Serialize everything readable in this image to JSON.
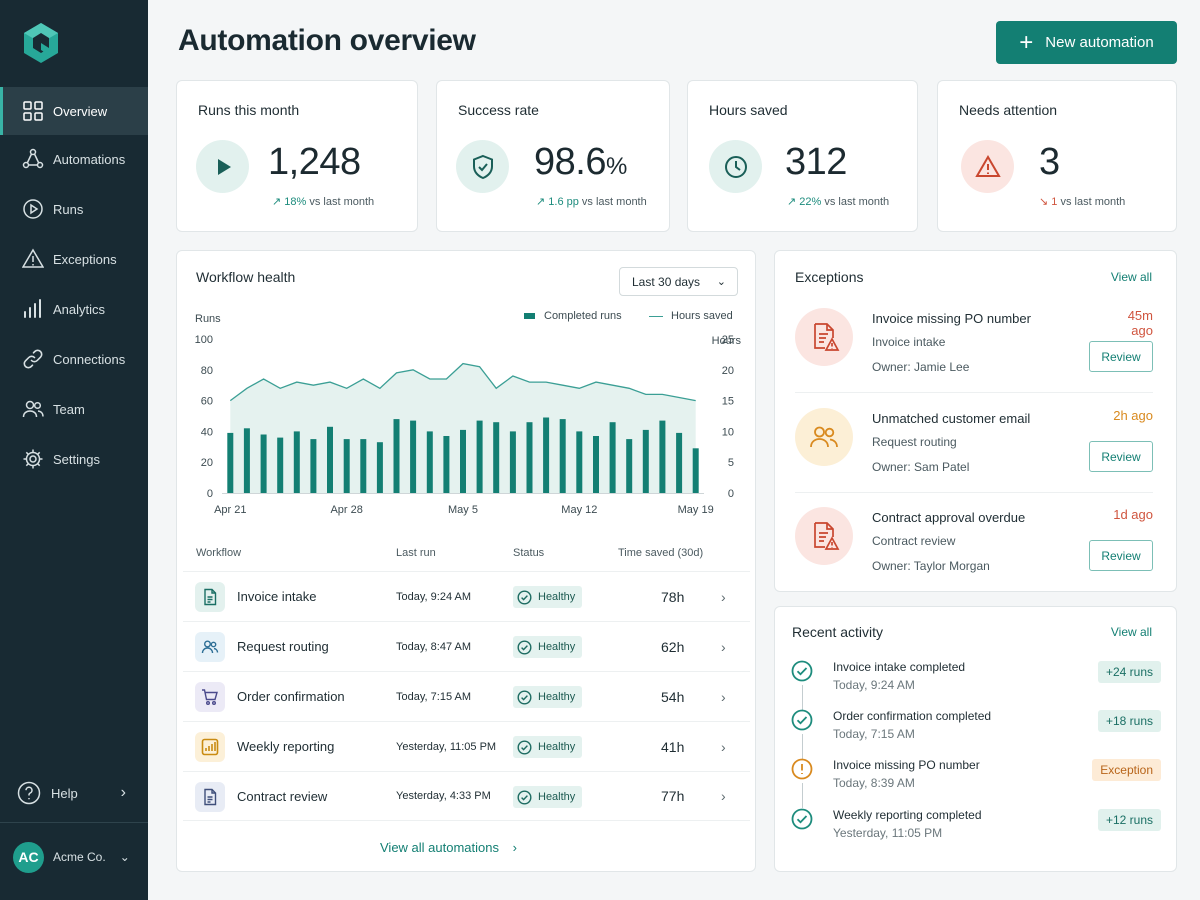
{
  "sidebar": {
    "items": [
      {
        "label": "Overview",
        "icon": "grid-icon"
      },
      {
        "label": "Automations",
        "icon": "nodes-icon"
      },
      {
        "label": "Runs",
        "icon": "play-circle-icon"
      },
      {
        "label": "Exceptions",
        "icon": "warning-icon"
      },
      {
        "label": "Analytics",
        "icon": "bar-chart-icon"
      },
      {
        "label": "Connections",
        "icon": "link-icon"
      },
      {
        "label": "Team",
        "icon": "team-icon"
      },
      {
        "label": "Settings",
        "icon": "gear-icon"
      }
    ],
    "active": "Overview",
    "help_label": "Help",
    "account": {
      "initials": "AC",
      "name": "Acme Co."
    }
  },
  "header": {
    "title": "Automation overview",
    "new_button": "New automation"
  },
  "kpis": [
    {
      "title": "Runs this month",
      "value": "1,248",
      "unit": "",
      "delta": "18%",
      "delta_suffix": " vs last month",
      "direction": "up"
    },
    {
      "title": "Success rate",
      "value": "98.6",
      "unit": "%",
      "delta": "1.6 pp",
      "delta_suffix": " vs last month",
      "direction": "up"
    },
    {
      "title": "Hours saved",
      "value": "312",
      "unit": "",
      "delta": "22%",
      "delta_suffix": " vs last month",
      "direction": "up"
    },
    {
      "title": "Needs attention",
      "value": "3",
      "unit": "",
      "delta": "1",
      "delta_suffix": " vs last month",
      "direction": "down"
    }
  ],
  "workflow_health": {
    "title": "Workflow health",
    "range": "Last 30 days",
    "table_headers": [
      "Workflow",
      "Last run",
      "Status",
      "Time saved (30d)"
    ],
    "rows": [
      {
        "name": "Invoice intake",
        "last_run": "Today, 9:24 AM",
        "status": "Healthy",
        "time_saved": "78h",
        "icon": "document-icon"
      },
      {
        "name": "Request routing",
        "last_run": "Today, 8:47 AM",
        "status": "Healthy",
        "time_saved": "62h",
        "icon": "users-icon"
      },
      {
        "name": "Order confirmation",
        "last_run": "Today, 7:15 AM",
        "status": "Healthy",
        "time_saved": "54h",
        "icon": "cart-icon"
      },
      {
        "name": "Weekly reporting",
        "last_run": "Yesterday, 11:05 PM",
        "status": "Healthy",
        "time_saved": "41h",
        "icon": "report-chart-icon"
      },
      {
        "name": "Contract review",
        "last_run": "Yesterday, 4:33 PM",
        "status": "Healthy",
        "time_saved": "77h",
        "icon": "contract-icon"
      }
    ],
    "view_all": "View all automations"
  },
  "chart_data": {
    "type": "bar",
    "title": "",
    "xlabel": "",
    "ylabel": "Runs",
    "y2label": "Hours",
    "ylim": [
      0,
      100
    ],
    "y2lim": [
      0,
      25
    ],
    "yticks": [
      "0",
      "20",
      "40",
      "60",
      "80",
      "100"
    ],
    "y2ticks": [
      "0",
      "5",
      "10",
      "15",
      "20",
      "25"
    ],
    "xticks": [
      "Apr 21",
      "Apr 28",
      "May 5",
      "May 12",
      "May 19"
    ],
    "x": [
      "Apr 21",
      "Apr 22",
      "Apr 23",
      "Apr 24",
      "Apr 25",
      "Apr 26",
      "Apr 27",
      "Apr 28",
      "Apr 29",
      "Apr 30",
      "May 1",
      "May 2",
      "May 3",
      "May 4",
      "May 5",
      "May 6",
      "May 7",
      "May 8",
      "May 9",
      "May 10",
      "May 11",
      "May 12",
      "May 13",
      "May 14",
      "May 15",
      "May 16",
      "May 17",
      "May 18",
      "May 19"
    ],
    "legend_position": "top-right",
    "series": [
      {
        "name": "Completed runs",
        "kind": "bar",
        "axis": "left",
        "color": "#137f73",
        "values": [
          39,
          42,
          38,
          36,
          40,
          35,
          43,
          35,
          35,
          33,
          48,
          47,
          40,
          37,
          41,
          47,
          46,
          40,
          46,
          49,
          48,
          40,
          37,
          46,
          35,
          41,
          47,
          39,
          29
        ]
      },
      {
        "name": "Hours saved",
        "kind": "line",
        "axis": "right",
        "color": "#3b9f95",
        "values": [
          15,
          17,
          18.5,
          17,
          18,
          17.5,
          18,
          17,
          18.5,
          17,
          19.5,
          20,
          18.5,
          18.5,
          21,
          20.5,
          17,
          19,
          18,
          18,
          17.5,
          17,
          18,
          17.5,
          17,
          16,
          16,
          15.5,
          15
        ]
      }
    ]
  },
  "exceptions": {
    "title": "Exceptions",
    "view_all": "View all",
    "items": [
      {
        "title": "Invoice missing PO number",
        "source": "Invoice intake",
        "owner": "Owner: Jamie Lee",
        "age": "45m ago",
        "action": "Review",
        "icon": "document-warning-icon",
        "tone": "red"
      },
      {
        "title": "Unmatched customer email",
        "source": "Request routing",
        "owner": "Owner: Sam Patel",
        "age": "2h ago",
        "action": "Review",
        "icon": "users-icon",
        "tone": "amber"
      },
      {
        "title": "Contract approval overdue",
        "source": "Contract review",
        "owner": "Owner: Taylor Morgan",
        "age": "1d ago",
        "action": "Review",
        "icon": "document-warning-icon",
        "tone": "red"
      }
    ]
  },
  "activity": {
    "title": "Recent activity",
    "view_all": "View all",
    "items": [
      {
        "title": "Invoice intake completed",
        "time": "Today, 9:24 AM",
        "badge": "+24 runs",
        "kind": "success"
      },
      {
        "title": "Order confirmation completed",
        "time": "Today, 7:15 AM",
        "badge": "+18 runs",
        "kind": "success"
      },
      {
        "title": "Invoice missing PO number",
        "time": "Today, 8:39 AM",
        "badge": "Exception",
        "kind": "warning"
      },
      {
        "title": "Weekly reporting completed",
        "time": "Yesterday, 11:05 PM",
        "badge": "+12 runs",
        "kind": "success"
      }
    ]
  },
  "colors": {
    "sidebar": "#182a33",
    "accent": "#137f73",
    "success": "#1d8c7d",
    "danger": "#d0553f",
    "warning": "#d98a1f"
  }
}
